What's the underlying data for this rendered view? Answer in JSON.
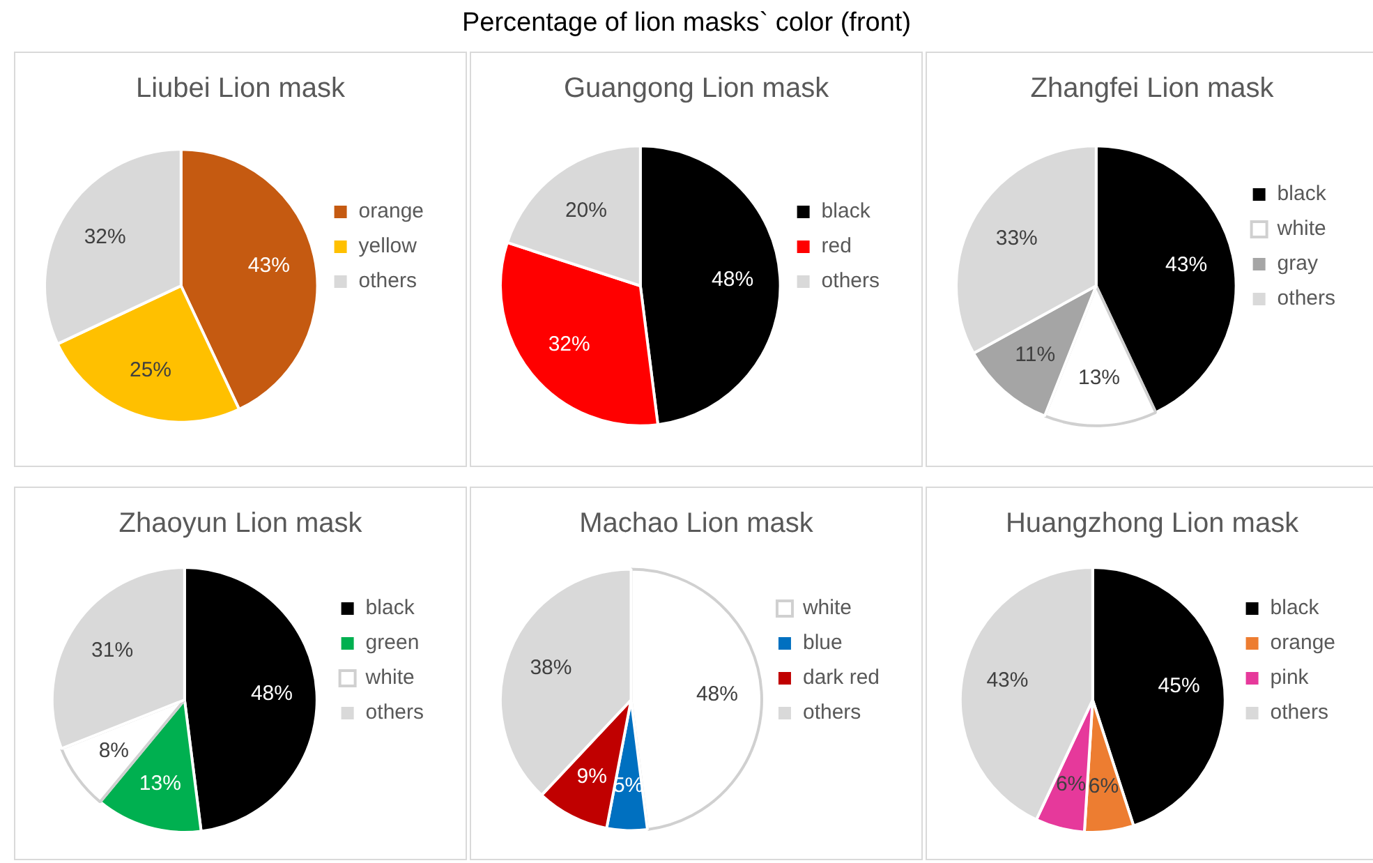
{
  "chart_data": [
    {
      "type": "other",
      "title": "Percentage of lion masks` color (front)"
    },
    {
      "type": "pie",
      "title": "Liubei Lion mask",
      "categories": [
        "orange",
        "yellow",
        "others"
      ],
      "values": [
        43,
        25,
        32
      ],
      "colors": [
        "#c55a11",
        "#ffc000",
        "#d9d9d9"
      ],
      "value_labels": [
        "43%",
        "25%",
        "32%"
      ],
      "legend": "right"
    },
    {
      "type": "pie",
      "title": "Guangong Lion mask",
      "categories": [
        "black",
        "red",
        "others"
      ],
      "values": [
        48,
        32,
        20
      ],
      "colors": [
        "#000000",
        "#ff0000",
        "#d9d9d9"
      ],
      "value_labels": [
        "48%",
        "32%",
        "20%"
      ],
      "legend": "right"
    },
    {
      "type": "pie",
      "title": "Zhangfei Lion mask",
      "categories": [
        "black",
        "white",
        "gray",
        "others"
      ],
      "values": [
        43,
        13,
        11,
        33
      ],
      "colors": [
        "#000000",
        "#ffffff",
        "#a5a5a5",
        "#d9d9d9"
      ],
      "value_labels": [
        "43%",
        "13%",
        "11%",
        "33%"
      ],
      "legend": "right"
    },
    {
      "type": "pie",
      "title": "Zhaoyun Lion mask",
      "categories": [
        "black",
        "green",
        "white",
        "others"
      ],
      "values": [
        48,
        13,
        8,
        31
      ],
      "colors": [
        "#000000",
        "#00b050",
        "#ffffff",
        "#d9d9d9"
      ],
      "value_labels": [
        "48%",
        "13%",
        "8%",
        "31%"
      ],
      "legend": "right"
    },
    {
      "type": "pie",
      "title": "Machao Lion mask",
      "categories": [
        "white",
        "blue",
        "dark red",
        "others"
      ],
      "values": [
        48,
        5,
        9,
        38
      ],
      "colors": [
        "#ffffff",
        "#0070c0",
        "#c00000",
        "#d9d9d9"
      ],
      "value_labels": [
        "48%",
        "5%",
        "9%",
        "38%"
      ],
      "legend": "right"
    },
    {
      "type": "pie",
      "title": "Huangzhong Lion mask",
      "categories": [
        "black",
        "orange",
        "pink",
        "others"
      ],
      "values": [
        45,
        6,
        6,
        43
      ],
      "colors": [
        "#000000",
        "#ed7d31",
        "#e6399b",
        "#d9d9d9"
      ],
      "value_labels": [
        "45%",
        "6%",
        "6%",
        "43%"
      ],
      "legend": "right"
    }
  ]
}
